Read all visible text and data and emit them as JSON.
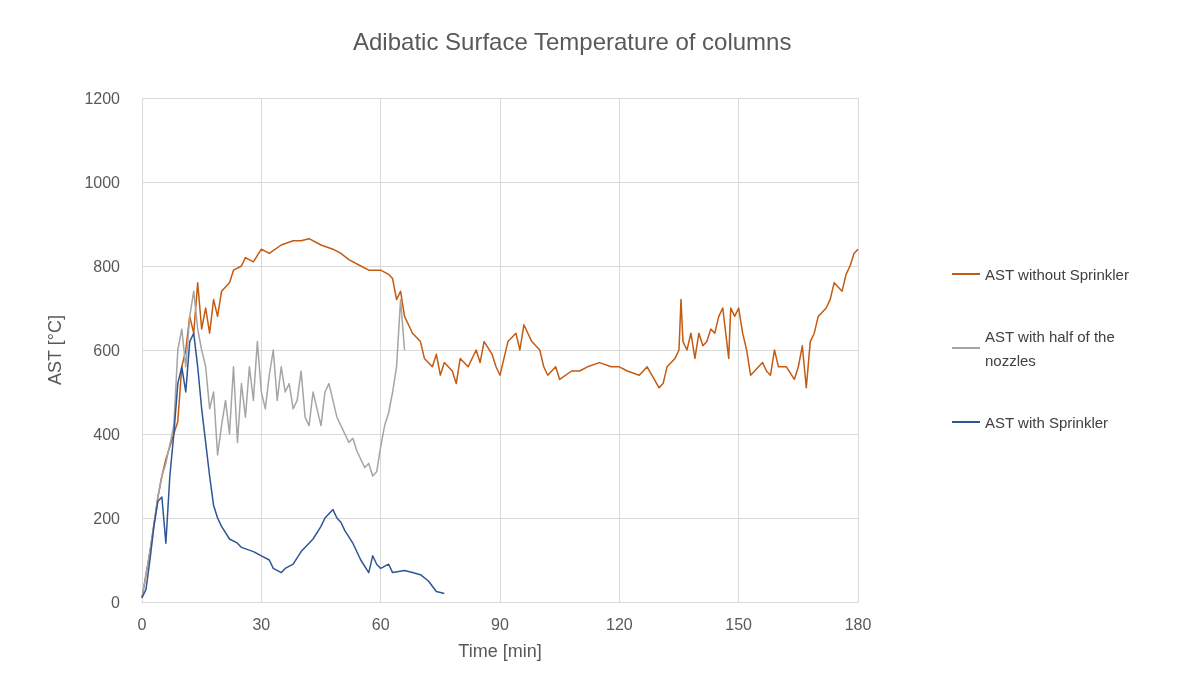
{
  "chart_data": {
    "type": "line",
    "title": "Adibatic Surface Temperature of columns",
    "xlabel": "Time [min]",
    "ylabel": "AST [°C]",
    "xlim": [
      0,
      180
    ],
    "xticks": [
      0,
      30,
      60,
      90,
      120,
      150,
      180
    ],
    "ylim": [
      0,
      1200
    ],
    "yticks": [
      0,
      200,
      400,
      600,
      800,
      1000,
      1200
    ],
    "grid": true,
    "legend": "right",
    "marker": "none",
    "line_style": "solid",
    "series": [
      {
        "name": "AST without Sprinkler",
        "color": "#c55a11",
        "x": [
          0,
          2,
          4,
          5,
          6,
          8,
          9,
          10,
          11,
          12,
          13,
          14,
          15,
          16,
          17,
          18,
          19,
          20,
          22,
          23,
          25,
          26,
          28,
          30,
          32,
          35,
          38,
          40,
          42,
          45,
          48,
          50,
          52,
          55,
          57,
          60,
          62,
          63,
          64,
          65,
          66,
          67,
          68,
          70,
          71,
          73,
          74,
          75,
          76,
          78,
          79,
          80,
          82,
          84,
          85,
          86,
          88,
          89,
          90,
          91,
          92,
          94,
          95,
          96,
          97,
          98,
          100,
          101,
          102,
          104,
          105,
          108,
          110,
          112,
          115,
          118,
          120,
          122,
          125,
          127,
          130,
          131,
          132,
          134,
          135,
          135.5,
          136,
          137,
          138,
          139,
          140,
          141,
          142,
          143,
          144,
          145,
          146,
          147,
          147.5,
          148,
          149,
          150,
          151,
          152,
          153,
          155,
          156,
          157,
          158,
          159,
          160,
          162,
          164,
          165,
          166,
          167,
          168,
          169,
          170,
          172,
          173,
          174,
          176,
          177,
          178,
          179,
          180
        ],
        "values": [
          10,
          120,
          250,
          300,
          340,
          400,
          430,
          560,
          600,
          680,
          640,
          760,
          650,
          700,
          640,
          720,
          680,
          740,
          760,
          790,
          800,
          820,
          810,
          840,
          830,
          850,
          860,
          860,
          865,
          850,
          840,
          830,
          815,
          800,
          790,
          790,
          780,
          770,
          720,
          740,
          680,
          660,
          640,
          620,
          580,
          560,
          590,
          540,
          570,
          550,
          520,
          580,
          560,
          600,
          570,
          620,
          590,
          560,
          540,
          580,
          620,
          640,
          600,
          660,
          640,
          620,
          600,
          560,
          540,
          560,
          530,
          550,
          550,
          560,
          570,
          560,
          560,
          550,
          540,
          560,
          510,
          520,
          560,
          580,
          600,
          720,
          620,
          600,
          640,
          580,
          640,
          610,
          620,
          650,
          640,
          680,
          700,
          620,
          580,
          700,
          680,
          700,
          640,
          600,
          540,
          560,
          570,
          550,
          540,
          600,
          560,
          560,
          530,
          560,
          610,
          510,
          620,
          640,
          680,
          700,
          720,
          760,
          740,
          780,
          800,
          830,
          840
        ]
      },
      {
        "name": "AST with half of the nozzles",
        "color": "#a5a5a5",
        "x": [
          0,
          2,
          4,
          5,
          6,
          8,
          9,
          10,
          11,
          12,
          13,
          14,
          15,
          16,
          17,
          18,
          19,
          20,
          21,
          22,
          23,
          24,
          25,
          26,
          27,
          28,
          29,
          30,
          31,
          32,
          33,
          34,
          35,
          36,
          37,
          38,
          39,
          40,
          41,
          42,
          43,
          44,
          45,
          46,
          47,
          48,
          49,
          50,
          51,
          52,
          53,
          54,
          55,
          56,
          57,
          58,
          59,
          60,
          61,
          62,
          63,
          64,
          65,
          66
        ],
        "values": [
          10,
          120,
          250,
          300,
          330,
          420,
          600,
          650,
          560,
          680,
          740,
          650,
          600,
          560,
          460,
          500,
          350,
          420,
          480,
          400,
          560,
          380,
          520,
          440,
          560,
          480,
          620,
          500,
          460,
          540,
          600,
          480,
          560,
          500,
          520,
          460,
          480,
          550,
          440,
          420,
          500,
          460,
          420,
          500,
          520,
          480,
          440,
          420,
          400,
          380,
          390,
          360,
          340,
          320,
          330,
          300,
          310,
          370,
          420,
          450,
          500,
          560,
          720,
          600
        ]
      },
      {
        "name": "AST with Sprinkler",
        "color": "#2f5597",
        "x": [
          0,
          1,
          2,
          3,
          4,
          5,
          6,
          7,
          8,
          9,
          10,
          11,
          12,
          13,
          14,
          15,
          16,
          17,
          18,
          19,
          20,
          22,
          24,
          25,
          28,
          30,
          32,
          33,
          35,
          36,
          38,
          40,
          42,
          43,
          45,
          46,
          47,
          48,
          49,
          50,
          51,
          53,
          55,
          57,
          58,
          59,
          60,
          62,
          63,
          66,
          68,
          70,
          72,
          74,
          76
        ],
        "values": [
          10,
          30,
          100,
          180,
          240,
          250,
          140,
          300,
          400,
          520,
          560,
          500,
          620,
          640,
          560,
          460,
          380,
          300,
          230,
          200,
          180,
          150,
          140,
          130,
          120,
          110,
          100,
          80,
          70,
          80,
          90,
          120,
          140,
          150,
          180,
          200,
          210,
          220,
          200,
          190,
          170,
          140,
          100,
          70,
          110,
          90,
          80,
          90,
          70,
          75,
          70,
          65,
          50,
          25,
          20
        ]
      }
    ]
  }
}
